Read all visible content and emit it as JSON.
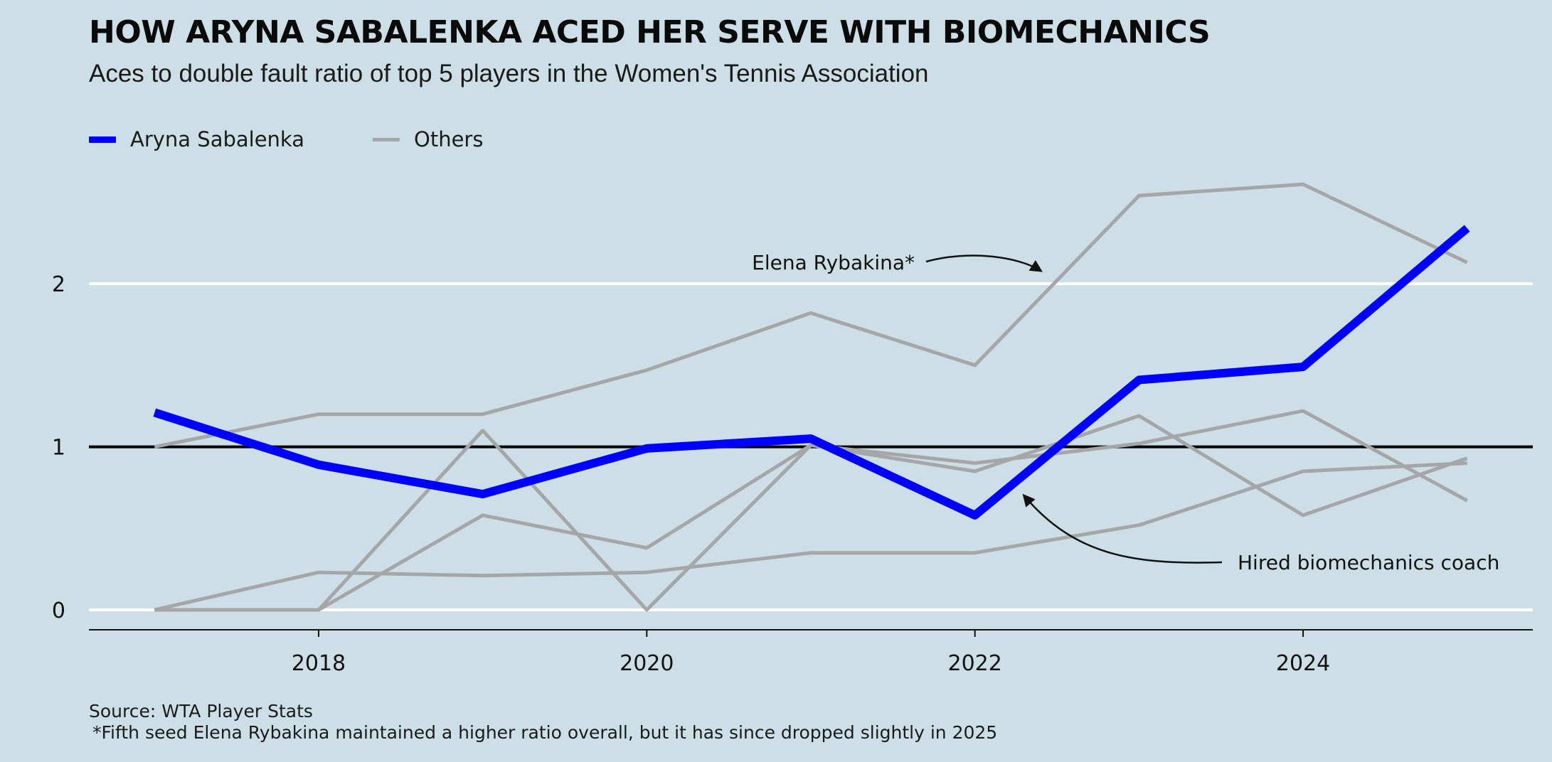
{
  "chart_data": {
    "type": "line",
    "title": "HOW ARYNA SABALENKA ACED HER SERVE WITH BIOMECHANICS",
    "subtitle": "Aces to double fault ratio of top 5 players in the Women's Tennis Association",
    "xlabel": "",
    "ylabel": "",
    "x": [
      2017,
      2018,
      2019,
      2020,
      2021,
      2022,
      2023,
      2024,
      2025
    ],
    "xlim": [
      2016.6,
      2025.4
    ],
    "ylim": [
      0,
      2.65
    ],
    "x_ticks": [
      2018,
      2020,
      2022,
      2024
    ],
    "y_ticks": [
      0,
      1,
      2
    ],
    "reference_line": 1,
    "grid": "horizontal",
    "legend_position": "top-left",
    "legend": [
      {
        "label": "Aryna Sabalenka",
        "color": "#0000ff"
      },
      {
        "label": "Others",
        "color": "#a6a6a8"
      }
    ],
    "series": [
      {
        "name": "Aryna Sabalenka",
        "group": "main",
        "color": "#0000ff",
        "values": [
          1.21,
          0.89,
          0.71,
          0.99,
          1.05,
          0.58,
          1.41,
          1.49,
          2.34
        ]
      },
      {
        "group": "other",
        "color": "#a6a6a8",
        "values": [
          1.0,
          1.2,
          1.2,
          1.47,
          1.82,
          1.5,
          2.54,
          2.61,
          2.13
        ]
      },
      {
        "group": "other",
        "color": "#a6a6a8",
        "values": [
          0.0,
          0.0,
          1.1,
          0.0,
          1.01,
          0.85,
          1.19,
          0.58,
          0.93
        ]
      },
      {
        "group": "other",
        "color": "#a6a6a8",
        "values": [
          0.0,
          0.0,
          0.58,
          0.38,
          1.01,
          0.9,
          1.02,
          1.22,
          0.67
        ]
      },
      {
        "group": "other",
        "color": "#a6a6a8",
        "values": [
          0.0,
          0.23,
          0.21,
          0.23,
          0.35,
          0.35,
          0.52,
          0.85,
          0.9
        ]
      }
    ],
    "annotations": [
      {
        "text": "Elena Rybakina*",
        "points_to_x": 2022.4,
        "points_to_y": 2.08
      },
      {
        "text": "Hired biomechanics coach",
        "points_to_x": 2022.3,
        "points_to_y": 0.7
      }
    ],
    "source": "Source: WTA Player Stats",
    "footnote": "*Fifth seed Elena Rybakina maintained a higher ratio overall, but it has since dropped slightly in 2025"
  },
  "colors": {
    "background": "#ccdfe6",
    "highlight": "#0000ff",
    "others": "#a6a6a8",
    "gridline": "#ffffff",
    "reference": "#000000"
  }
}
